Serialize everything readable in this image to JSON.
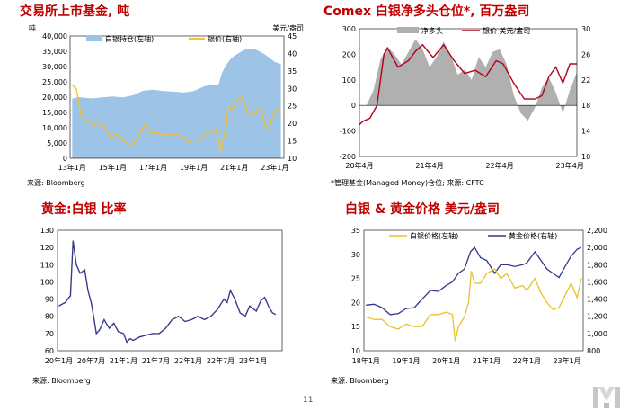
{
  "page_number": "11",
  "colors": {
    "title_red": "#c00000",
    "silver_area": "#9dc3e6",
    "gold_line": "#f2c230",
    "net_long_gray": "#b0b0b0",
    "price_dark_red": "#b2001a",
    "ratio_navy": "#3a3a8c",
    "silver_price_gold": "#e8c229",
    "gold_price_navy": "#34348c"
  },
  "chart_data": [
    {
      "id": "etf",
      "type": "area",
      "title": "交易所上市基金, 吨",
      "source": "来源: Bloomberg",
      "left_unit": "吨",
      "right_unit": "美元/盎司",
      "x_ticks": [
        "13年1月",
        "15年1月",
        "17年1月",
        "19年1月",
        "21年1月",
        "23年1月"
      ],
      "y_left_ticks": [
        "0",
        "5,000",
        "10,000",
        "15,000",
        "20,000",
        "25,000",
        "30,000",
        "35,000",
        "40,000"
      ],
      "y_right_ticks": [
        "10",
        "15",
        "20",
        "25",
        "30",
        "35",
        "40",
        "45"
      ],
      "ylim_left": [
        0,
        40000
      ],
      "ylim_right": [
        10,
        45
      ],
      "grid": false,
      "legend_position": "top-left",
      "series": [
        {
          "name": "白银持仓(左轴)",
          "axis": "left",
          "kind": "area",
          "x": [
            2013.0,
            2013.3,
            2013.6,
            2014.0,
            2014.5,
            2015.0,
            2015.5,
            2016.0,
            2016.5,
            2017.0,
            2017.5,
            2018.0,
            2018.5,
            2019.0,
            2019.5,
            2020.0,
            2020.2,
            2020.4,
            2020.6,
            2020.8,
            2021.0,
            2021.5,
            2022.0,
            2022.5,
            2023.0,
            2023.3
          ],
          "values": [
            19500,
            20000,
            19800,
            19600,
            19900,
            20200,
            19900,
            20600,
            22100,
            22400,
            22000,
            21800,
            21500,
            22000,
            23500,
            24200,
            23800,
            28000,
            30500,
            32300,
            33500,
            35500,
            35800,
            34000,
            31500,
            30800
          ]
        },
        {
          "name": "银价(右轴)",
          "axis": "right",
          "kind": "line",
          "x": [
            2013.0,
            2013.2,
            2013.45,
            2013.7,
            2014.0,
            2014.3,
            2014.6,
            2014.9,
            2015.2,
            2015.5,
            2015.9,
            2016.1,
            2016.3,
            2016.6,
            2016.9,
            2017.2,
            2017.5,
            2017.8,
            2018.1,
            2018.4,
            2018.7,
            2019.0,
            2019.3,
            2019.6,
            2019.9,
            2020.1,
            2020.2,
            2020.35,
            2020.5,
            2020.6,
            2020.7,
            2020.9,
            2021.1,
            2021.4,
            2021.7,
            2022.0,
            2022.3,
            2022.5,
            2022.7,
            2022.9,
            2023.1,
            2023.3
          ],
          "values": [
            31,
            30,
            22,
            21,
            19.5,
            20,
            19,
            16,
            17,
            15,
            14,
            14.5,
            17,
            20,
            17,
            17.5,
            16.5,
            17,
            16.8,
            16.5,
            14.5,
            15.5,
            15,
            17.5,
            17.5,
            18,
            16,
            12,
            17,
            19,
            25,
            24,
            26.5,
            27.5,
            23,
            22.5,
            24.5,
            20,
            18.5,
            22,
            24,
            22.5
          ]
        }
      ]
    },
    {
      "id": "comex",
      "type": "area",
      "title": "Comex 白银净多头仓位*, 百万盎司",
      "source": "*管理基金(Managed Money)仓位; 来源: CFTC",
      "x_ticks": [
        "20年4月",
        "21年4月",
        "22年4月",
        "23年4月"
      ],
      "y_left_ticks": [
        "-200",
        "-100",
        "0",
        "100",
        "200",
        "300"
      ],
      "y_right_ticks": [
        "10",
        "14",
        "18",
        "22",
        "26",
        "30"
      ],
      "ylim_left": [
        -200,
        300
      ],
      "ylim_right": [
        10,
        30
      ],
      "grid": false,
      "legend_position": "top-center",
      "series": [
        {
          "name": "净多头",
          "axis": "left",
          "kind": "area",
          "x": [
            2020.25,
            2020.35,
            2020.45,
            2020.55,
            2020.65,
            2020.75,
            2020.85,
            2020.95,
            2021.05,
            2021.15,
            2021.25,
            2021.35,
            2021.45,
            2021.55,
            2021.65,
            2021.75,
            2021.85,
            2021.95,
            2022.05,
            2022.15,
            2022.25,
            2022.35,
            2022.45,
            2022.55,
            2022.65,
            2022.75,
            2022.85,
            2022.95,
            2023.05,
            2023.15,
            2023.25,
            2023.35
          ],
          "values": [
            0,
            0,
            60,
            180,
            230,
            200,
            160,
            210,
            260,
            220,
            150,
            190,
            250,
            200,
            120,
            140,
            100,
            190,
            150,
            210,
            220,
            160,
            40,
            -30,
            -60,
            -10,
            70,
            110,
            50,
            -30,
            60,
            130
          ]
        },
        {
          "name": "银价 美元/盎司",
          "axis": "right",
          "kind": "line",
          "x": [
            2020.25,
            2020.3,
            2020.4,
            2020.5,
            2020.55,
            2020.6,
            2020.65,
            2020.8,
            2020.95,
            2021.05,
            2021.15,
            2021.3,
            2021.45,
            2021.6,
            2021.75,
            2021.9,
            2022.05,
            2022.2,
            2022.3,
            2022.45,
            2022.6,
            2022.75,
            2022.85,
            2022.95,
            2023.05,
            2023.15,
            2023.25,
            2023.35
          ],
          "values": [
            15,
            15.5,
            16,
            18,
            22,
            26,
            27,
            24,
            25,
            26.5,
            27.5,
            25.5,
            27.5,
            25,
            23,
            23.5,
            22.5,
            25,
            24.5,
            21.5,
            19,
            19,
            19.5,
            22.5,
            24,
            21.5,
            24.5,
            24.5
          ]
        }
      ]
    },
    {
      "id": "ratio",
      "type": "line",
      "title": "黄金:白银 比率",
      "source": "来源: Bloomberg",
      "x_ticks": [
        "20年1月",
        "20年7月",
        "21年1月",
        "21年7月",
        "22年1月",
        "22年7月",
        "23年1月"
      ],
      "y_ticks": [
        "60",
        "70",
        "80",
        "90",
        "100",
        "110",
        "120",
        "130"
      ],
      "ylim": [
        60,
        130
      ],
      "grid": false,
      "series": [
        {
          "name": "",
          "x": [
            2020.0,
            2020.05,
            2020.1,
            2020.18,
            2020.22,
            2020.27,
            2020.33,
            2020.4,
            2020.45,
            2020.5,
            2020.55,
            2020.58,
            2020.63,
            2020.7,
            2020.78,
            2020.85,
            2020.92,
            2021.0,
            2021.05,
            2021.1,
            2021.15,
            2021.25,
            2021.35,
            2021.45,
            2021.55,
            2021.65,
            2021.75,
            2021.85,
            2021.95,
            2022.05,
            2022.15,
            2022.25,
            2022.35,
            2022.45,
            2022.55,
            2022.6,
            2022.65,
            2022.72,
            2022.8,
            2022.88,
            2022.95,
            2023.05,
            2023.12,
            2023.18,
            2023.25,
            2023.3,
            2023.35
          ],
          "values": [
            86,
            87,
            88,
            92,
            124,
            110,
            105,
            107,
            95,
            88,
            77,
            70,
            72,
            78,
            73,
            76,
            71,
            70,
            65,
            67,
            66,
            68,
            69,
            70,
            70,
            73,
            78,
            80,
            77,
            78,
            80,
            78,
            80,
            84,
            90,
            88,
            95,
            90,
            82,
            80,
            86,
            83,
            89,
            91,
            85,
            82,
            81
          ]
        }
      ]
    },
    {
      "id": "prices",
      "type": "line",
      "title": "白银 & 黄金价格 美元/盎司",
      "source": "来源: Bloomberg",
      "x_ticks": [
        "18年1月",
        "19年1月",
        "20年1月",
        "21年1月",
        "22年1月",
        "23年1月"
      ],
      "y_left_ticks": [
        "10",
        "15",
        "20",
        "25",
        "30",
        "35"
      ],
      "y_right_ticks": [
        "800",
        "1,000",
        "1,200",
        "1,400",
        "1,600",
        "1,800",
        "2,000",
        "2,200"
      ],
      "ylim_left": [
        10,
        35
      ],
      "ylim_right": [
        800,
        2200
      ],
      "grid": false,
      "legend_position": "top-left",
      "series": [
        {
          "name": "白银价格(左轴)",
          "axis": "left",
          "kind": "line",
          "x": [
            2018.0,
            2018.2,
            2018.4,
            2018.6,
            2018.8,
            2019.0,
            2019.2,
            2019.4,
            2019.6,
            2019.8,
            2020.0,
            2020.15,
            2020.22,
            2020.3,
            2020.45,
            2020.55,
            2020.62,
            2020.7,
            2020.85,
            2021.0,
            2021.2,
            2021.35,
            2021.5,
            2021.7,
            2021.9,
            2022.0,
            2022.2,
            2022.35,
            2022.5,
            2022.65,
            2022.8,
            2022.95,
            2023.1,
            2023.25,
            2023.35
          ],
          "values": [
            17,
            16.5,
            16.5,
            15,
            14.5,
            15.5,
            15,
            15,
            17.5,
            17.5,
            18,
            17.5,
            12,
            15,
            17,
            20,
            26.5,
            24,
            24,
            26,
            27,
            25,
            26,
            23,
            23.5,
            22.5,
            25,
            22,
            20,
            18.5,
            19,
            21.5,
            24,
            21,
            25
          ]
        },
        {
          "name": "黄金价格(右轴)",
          "axis": "right",
          "kind": "line",
          "x": [
            2018.0,
            2018.2,
            2018.4,
            2018.6,
            2018.8,
            2019.0,
            2019.2,
            2019.4,
            2019.6,
            2019.8,
            2020.0,
            2020.15,
            2020.3,
            2020.45,
            2020.6,
            2020.7,
            2020.85,
            2021.0,
            2021.2,
            2021.35,
            2021.5,
            2021.7,
            2021.9,
            2022.0,
            2022.2,
            2022.35,
            2022.5,
            2022.65,
            2022.8,
            2022.95,
            2023.1,
            2023.25,
            2023.35
          ],
          "values": [
            1330,
            1340,
            1300,
            1220,
            1230,
            1290,
            1300,
            1400,
            1500,
            1490,
            1560,
            1600,
            1700,
            1750,
            1950,
            2000,
            1880,
            1850,
            1700,
            1800,
            1800,
            1780,
            1800,
            1820,
            1950,
            1850,
            1750,
            1700,
            1650,
            1780,
            1900,
            1980,
            2000
          ]
        }
      ]
    }
  ]
}
